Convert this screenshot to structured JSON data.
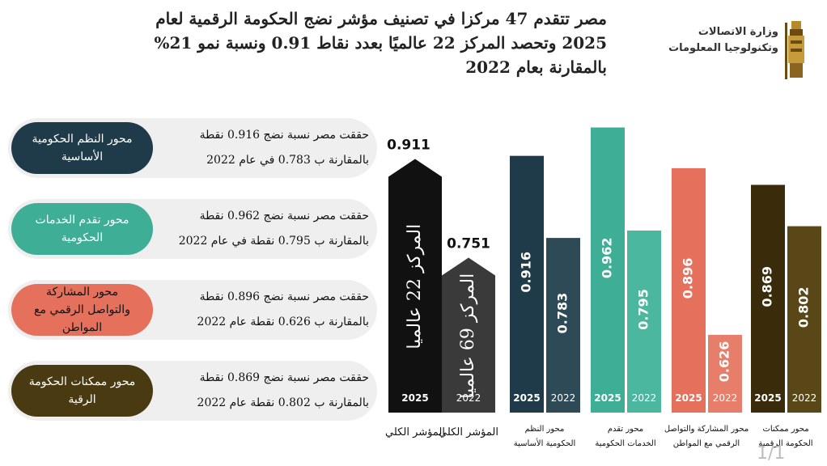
{
  "header": {
    "title_lines": [
      "مصر تتقدم 47 مركزا في تصنيف مؤشر نضج الحكومة الرقمية لعام",
      "2025 وتحصد المركز 22 عالميًا بعدد نقاط 0.91  ونسبة نمو 21%",
      "بالمقارنة بعام 2022"
    ],
    "org_lines": [
      "وزارة الاتصالات",
      "وتكنولوجيا المعلومات"
    ]
  },
  "cards": [
    {
      "tag": "محور النظم الحكومية الأساسية",
      "line1": "حققت مصر نسبة نضج 0.916 نقطة",
      "line2": "بالمقارنة ب 0.783 في عام 2022",
      "color": "#1f3b4a",
      "text_color": "#ffffff"
    },
    {
      "tag": "محور تقدم الخدمات الحكومية",
      "line1": "حققت مصر نسبة نضج 0.962 نقطة",
      "line2": "بالمقارنة ب 0.795 نقطة في عام 2022",
      "color": "#3fae96",
      "text_color": "#ffffff"
    },
    {
      "tag": "محور المشاركة والتواصل الرقمي مع المواطن",
      "line1": "حققت مصر نسبة نضج 0.896 نقطة",
      "line2": "بالمقارنة ب 0.626 نقطة عام 2022",
      "color": "#e5705c",
      "text_color": "#111111"
    },
    {
      "tag": "محور ممكنات الحكومة الرقية",
      "line1": "حققت مصر نسبة نضج 0.869 نقطة",
      "line2": "بالمقارنة ب 0.802 نقطة عام 2022",
      "color": "#4a3a12",
      "text_color": "#ffffff"
    }
  ],
  "chart_data": {
    "type": "bar",
    "title": "",
    "xlabel": "",
    "ylabel": "",
    "overall": [
      {
        "year": "2025",
        "value": 0.911,
        "label": "0.911",
        "rank_text": "المركز 22 عالميا",
        "color": "#111111"
      },
      {
        "year": "2022",
        "value": 0.751,
        "label": "0.751",
        "rank_text": "المركز 69 عالميا",
        "color": "#3a3a3a"
      }
    ],
    "overall_labels": [
      "المؤشر الكلي",
      "المؤشر الكلي"
    ],
    "categories": [
      "محور النظم الحكومية الأساسية",
      "محور تقدم الخدمات الحكومية",
      "محور المشاركة والتواصل الرقمي مع المواطن",
      "محور ممكنات الحكومة الرقمية"
    ],
    "series": [
      {
        "name": "2025",
        "values": [
          0.916,
          0.962,
          0.896,
          0.869
        ]
      },
      {
        "name": "2022",
        "values": [
          0.783,
          0.795,
          0.626,
          0.802
        ]
      }
    ],
    "colors_2025": [
      "#1f3b4a",
      "#3fae96",
      "#e5705c",
      "#3a2c0a"
    ],
    "colors_2022": [
      "#2e4a57",
      "#4cb79f",
      "#e77e6a",
      "#5a4718"
    ],
    "ylim": [
      0,
      1.0
    ]
  },
  "footer": {
    "page": "1/1"
  }
}
